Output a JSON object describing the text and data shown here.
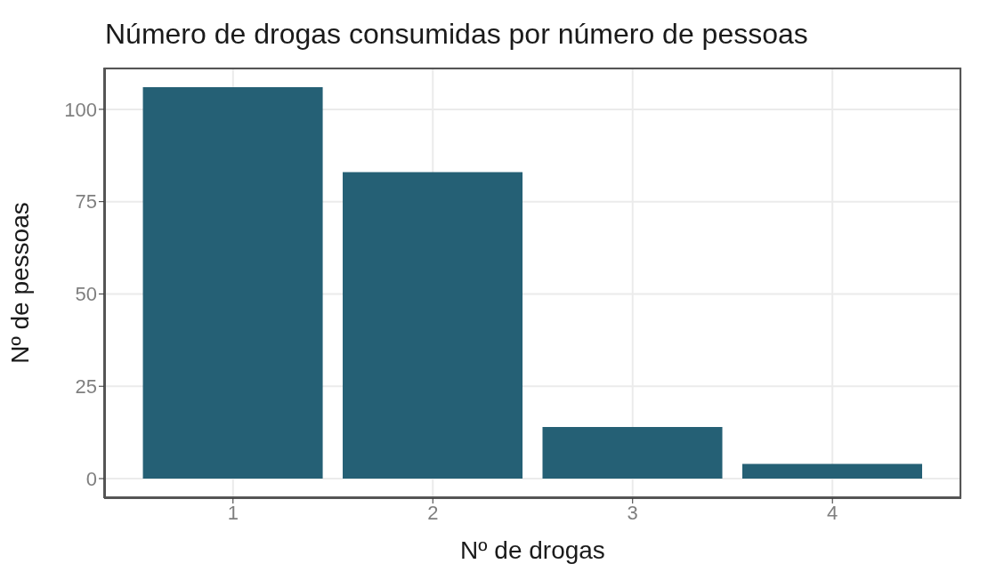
{
  "chart_data": {
    "type": "bar",
    "title": "Número de drogas consumidas por número de pessoas",
    "xlabel": "Nº de drogas",
    "ylabel": "Nº de pessoas",
    "x": [
      1,
      2,
      3,
      4
    ],
    "values": [
      106,
      83,
      14,
      4
    ],
    "color": "#256075",
    "xlim": [
      0.355,
      4.645
    ],
    "xticks": [
      1,
      2,
      3,
      4
    ],
    "ylim": [
      -5.3,
      111.3
    ],
    "yticks": [
      0,
      25,
      50,
      75,
      100
    ],
    "grid": true
  }
}
